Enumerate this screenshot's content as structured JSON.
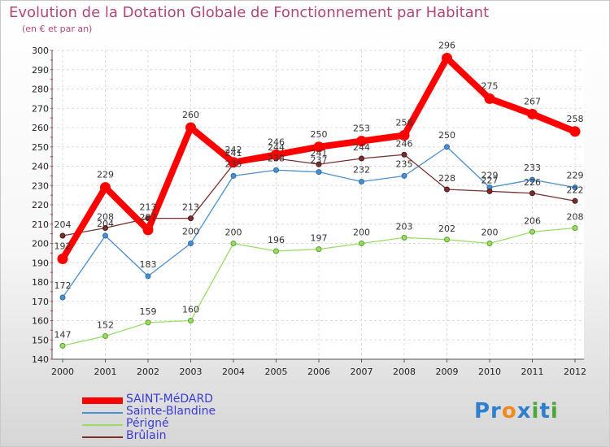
{
  "chart_data": {
    "type": "line",
    "title": "Evolution de la Dotation Globale de Fonctionnement par Habitant",
    "subtitle": "(en € et par an)",
    "x": [
      "2000",
      "2001",
      "2002",
      "2003",
      "2004",
      "2005",
      "2006",
      "2007",
      "2008",
      "2009",
      "2010",
      "2011",
      "2012"
    ],
    "ylim": [
      140,
      300
    ],
    "yticks": [
      140,
      150,
      160,
      170,
      180,
      190,
      200,
      210,
      220,
      230,
      240,
      250,
      260,
      270,
      280,
      290,
      300
    ],
    "grid": true,
    "legend_position": "bottom-left",
    "series": [
      {
        "name": "SAINT-MéDARD",
        "color": "#ff0000",
        "values": [
          192,
          229,
          207,
          260,
          242,
          246,
          250,
          253,
          256,
          296,
          275,
          267,
          258
        ],
        "labels": [
          "192",
          "229",
          "207",
          "260",
          "242",
          "246",
          "250",
          "253",
          "256",
          "296",
          "275",
          "267",
          "258"
        ]
      },
      {
        "name": "Sainte-Blandine",
        "color": "#4a8fcf",
        "values": [
          172,
          204,
          183,
          200,
          235,
          238,
          237,
          232,
          235,
          250,
          229,
          233,
          229
        ],
        "labels": [
          "172",
          "204",
          "183",
          "200",
          "235",
          "238",
          "237",
          "232",
          "235",
          "250",
          "229",
          "233",
          "229"
        ]
      },
      {
        "name": "Périgné",
        "color": "#99dd66",
        "values": [
          147,
          152,
          159,
          160,
          200,
          196,
          197,
          200,
          203,
          202,
          200,
          206,
          208
        ],
        "labels": [
          "147",
          "152",
          "159",
          "160",
          "200",
          "196",
          "197",
          "200",
          "203",
          "202",
          "200",
          "206",
          "208"
        ]
      },
      {
        "name": "Brûlain",
        "color": "#7a2e2e",
        "values": [
          204,
          208,
          213,
          213,
          241,
          244,
          241,
          244,
          246,
          228,
          227,
          226,
          222
        ],
        "labels": [
          "204",
          "208",
          "213",
          "213",
          "241",
          "244",
          "241",
          "244",
          "246",
          "228",
          "227",
          "226",
          "222"
        ]
      }
    ]
  },
  "logo": {
    "text": "Proxiti"
  }
}
